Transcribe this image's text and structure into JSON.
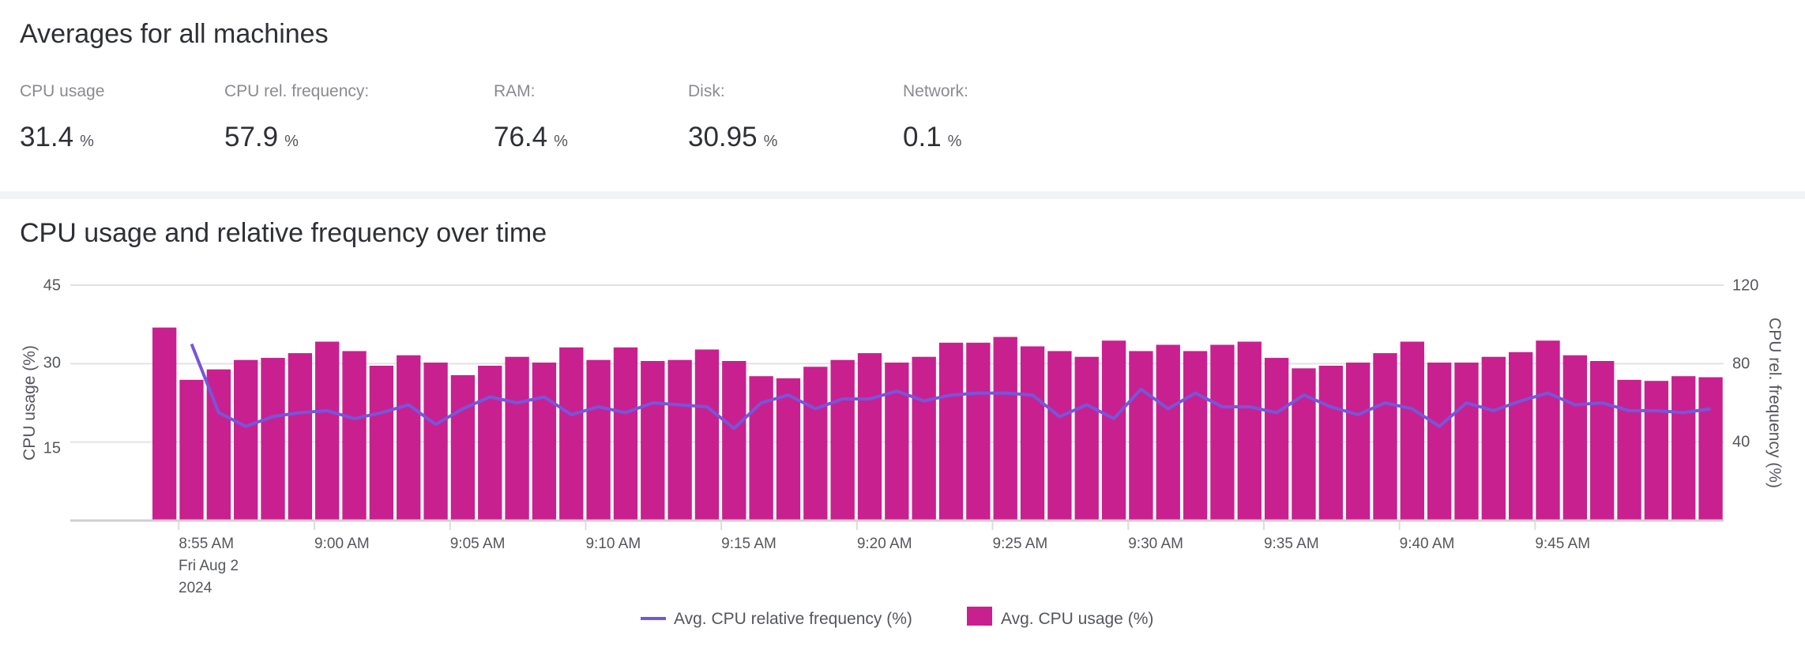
{
  "averages": {
    "title": "Averages for all machines",
    "metrics": [
      {
        "label": "CPU usage",
        "value": "31.4",
        "unit": "%"
      },
      {
        "label": "CPU rel. frequency:",
        "value": "57.9",
        "unit": "%"
      },
      {
        "label": "RAM:",
        "value": "76.4",
        "unit": "%"
      },
      {
        "label": "Disk:",
        "value": "30.95",
        "unit": "%"
      },
      {
        "label": "Network:",
        "value": "0.1",
        "unit": "%"
      }
    ]
  },
  "chart_data": {
    "type": "bar",
    "title": "CPU usage and relative frequency over time",
    "x_tick_labels": [
      "8:55 AM",
      "9:00 AM",
      "9:05 AM",
      "9:10 AM",
      "9:15 AM",
      "9:20 AM",
      "9:25 AM",
      "9:30 AM",
      "9:35 AM",
      "9:40 AM",
      "9:45 AM"
    ],
    "x_date_label": [
      "Fri Aug 2",
      "2024"
    ],
    "ylabel": "CPU usage (%)",
    "ylabel_right": "CPU rel. frequency (%)",
    "ylim": [
      0,
      45
    ],
    "ylim_right": [
      0,
      120
    ],
    "y_ticks": [
      "15",
      "30",
      "45"
    ],
    "y_ticks_right": [
      "40",
      "80",
      "120"
    ],
    "grid": true,
    "legend_position": "bottom-center",
    "colors": {
      "bars": "#c9208f",
      "line": "#7656da"
    },
    "series": [
      {
        "name": "Avg. CPU relative frequency (%)",
        "type": "line",
        "axis": "right",
        "values": [
          null,
          90,
          55,
          48,
          53,
          55,
          56,
          52,
          55,
          59,
          49,
          57,
          63,
          60,
          63,
          54,
          58,
          55,
          60,
          59,
          58,
          47,
          60,
          64,
          57,
          62,
          62,
          66,
          61,
          64,
          65,
          65,
          64,
          53,
          59,
          52,
          67,
          57,
          65,
          58,
          58,
          55,
          64,
          58,
          54,
          60,
          57,
          48,
          60,
          56,
          61,
          65,
          59,
          60,
          56,
          56,
          55,
          57
        ]
      },
      {
        "name": "Avg. CPU usage (%)",
        "type": "bar",
        "axis": "left",
        "values": [
          36.9,
          26.9,
          28.9,
          30.7,
          31.1,
          32.0,
          34.2,
          32.4,
          29.6,
          31.6,
          30.2,
          27.8,
          29.6,
          31.3,
          30.2,
          33.1,
          30.7,
          33.1,
          30.5,
          30.7,
          32.7,
          30.5,
          27.6,
          27.2,
          29.4,
          30.7,
          32.0,
          30.2,
          31.3,
          34.0,
          34.0,
          35.1,
          33.3,
          32.4,
          31.3,
          34.4,
          32.4,
          33.6,
          32.4,
          33.6,
          34.2,
          31.1,
          29.1,
          29.6,
          30.2,
          32.0,
          34.2,
          30.2,
          30.2,
          31.3,
          32.2,
          34.4,
          31.6,
          30.5,
          26.9,
          26.7,
          27.6,
          27.4
        ]
      }
    ]
  }
}
